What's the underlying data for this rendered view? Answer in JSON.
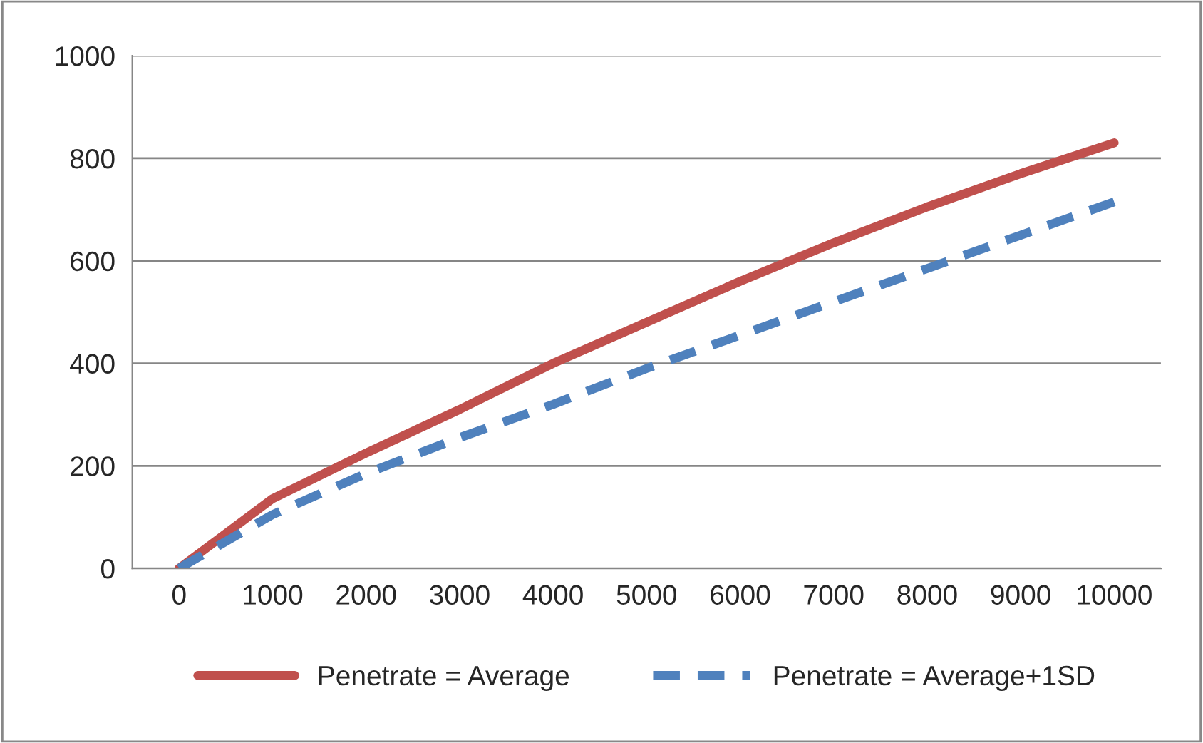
{
  "chart_data": {
    "type": "line",
    "categories": [
      "0",
      "1000",
      "2000",
      "3000",
      "4000",
      "5000",
      "6000",
      "7000",
      "8000",
      "9000",
      "10000"
    ],
    "series": [
      {
        "name": "Penetrate = Average",
        "color": "#c0504d",
        "line_style": "solid",
        "values": [
          0,
          136,
          225,
          310,
          400,
          480,
          560,
          635,
          705,
          770,
          830
        ]
      },
      {
        "name": "Penetrate = Average+1SD",
        "color": "#4f81bd",
        "line_style": "dashed",
        "values": [
          0,
          105,
          185,
          255,
          320,
          390,
          455,
          520,
          585,
          650,
          715
        ]
      }
    ],
    "ylim": [
      0,
      1000
    ],
    "yticks": [
      0,
      200,
      400,
      600,
      800,
      1000
    ],
    "grid": "y",
    "legend": "bottom",
    "marker": "none"
  }
}
